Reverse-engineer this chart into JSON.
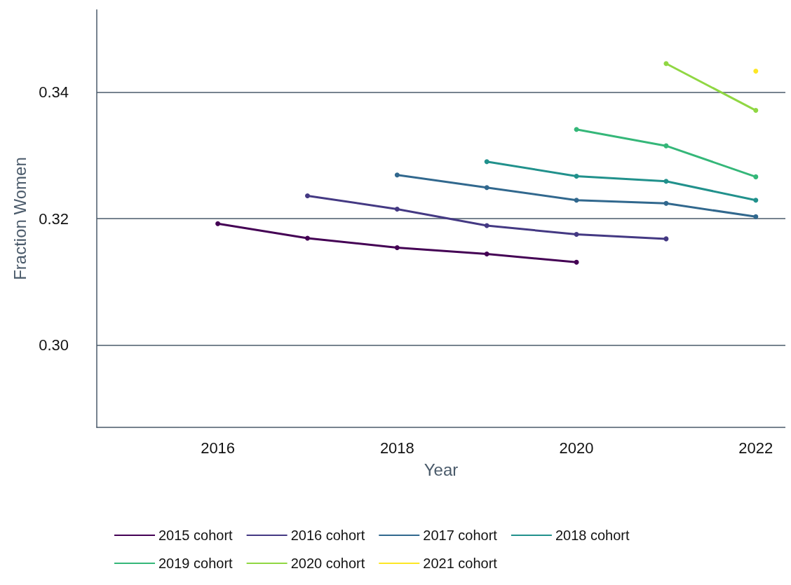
{
  "chart_data": {
    "type": "line",
    "xlabel": "Year",
    "ylabel": "Fraction Women",
    "xlim": [
      2014.65,
      2022.33
    ],
    "xticks": [
      2016,
      2018,
      2020,
      2022
    ],
    "ylim": [
      0.287,
      0.353
    ],
    "yticks": [
      {
        "value": 0.3,
        "label": "0.30"
      },
      {
        "value": 0.32,
        "label": "0.32"
      },
      {
        "value": 0.34,
        "label": "0.34"
      }
    ],
    "grid": "y",
    "legend": "bottom",
    "marker": "circle",
    "line_style": "solid",
    "series": [
      {
        "name": "2015 cohort",
        "color": "#440154",
        "x": [
          2016,
          2017,
          2018,
          2019,
          2020
        ],
        "values": [
          0.3192,
          0.3169,
          0.3154,
          0.3144,
          0.3131
        ]
      },
      {
        "name": "2016 cohort",
        "color": "#443983",
        "x": [
          2017,
          2018,
          2019,
          2020,
          2021
        ],
        "values": [
          0.3236,
          0.3215,
          0.3189,
          0.3175,
          0.3168
        ]
      },
      {
        "name": "2017 cohort",
        "color": "#31688e",
        "x": [
          2018,
          2019,
          2020,
          2021,
          2022
        ],
        "values": [
          0.3269,
          0.3249,
          0.3229,
          0.3224,
          0.3203
        ]
      },
      {
        "name": "2018 cohort",
        "color": "#21918c",
        "x": [
          2019,
          2020,
          2021,
          2022
        ],
        "values": [
          0.329,
          0.3267,
          0.3259,
          0.3229
        ]
      },
      {
        "name": "2019 cohort",
        "color": "#35b779",
        "x": [
          2020,
          2021,
          2022
        ],
        "values": [
          0.3341,
          0.3315,
          0.3266
        ]
      },
      {
        "name": "2020 cohort",
        "color": "#90d743",
        "x": [
          2021,
          2022
        ],
        "values": [
          0.3445,
          0.3371
        ]
      },
      {
        "name": "2021 cohort",
        "color": "#fde725",
        "x": [
          2022
        ],
        "values": [
          0.3433
        ]
      }
    ]
  }
}
